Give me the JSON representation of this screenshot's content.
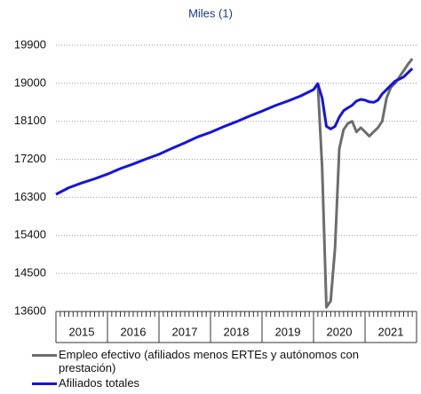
{
  "chart_data": {
    "type": "line",
    "title": "Miles (1)",
    "year_labels": [
      "2015",
      "2016",
      "2017",
      "2018",
      "2019",
      "2020",
      "2021"
    ],
    "x": [
      2015,
      2015.25,
      2015.5,
      2015.75,
      2016,
      2016.25,
      2016.5,
      2016.75,
      2017,
      2017.25,
      2017.5,
      2017.75,
      2018,
      2018.25,
      2018.5,
      2018.75,
      2019,
      2019.25,
      2019.5,
      2019.75,
      2020,
      2020.083,
      2020.167,
      2020.25,
      2020.333,
      2020.417,
      2020.5,
      2020.583,
      2020.667,
      2020.75,
      2020.833,
      2020.917,
      2021,
      2021.083,
      2021.167,
      2021.25,
      2021.333,
      2021.417,
      2021.5,
      2021.583,
      2021.667,
      2021.75,
      2021.833,
      2021.917
    ],
    "series": [
      {
        "name": "Empleo efectivo (afiliados menos ERTEs y autónomos con prestación)",
        "color": "#6d6d6d",
        "values": [
          null,
          null,
          null,
          null,
          null,
          null,
          null,
          null,
          null,
          null,
          null,
          null,
          null,
          null,
          null,
          null,
          null,
          null,
          null,
          null,
          18850,
          18990,
          17000,
          13700,
          13850,
          15100,
          17450,
          17900,
          18050,
          18100,
          17850,
          17950,
          17850,
          17750,
          17850,
          17950,
          18100,
          18650,
          18900,
          19000,
          19150,
          19300,
          19450,
          19580
        ]
      },
      {
        "name": "Afiliados totales",
        "color": "#1414e0",
        "values": [
          16372,
          16530,
          16640,
          16740,
          16850,
          16980,
          17090,
          17210,
          17320,
          17460,
          17590,
          17730,
          17840,
          17970,
          18090,
          18220,
          18340,
          18470,
          18580,
          18700,
          18850,
          18990,
          18650,
          17980,
          17920,
          17980,
          18200,
          18350,
          18420,
          18480,
          18580,
          18620,
          18600,
          18560,
          18550,
          18600,
          18750,
          18850,
          18950,
          19050,
          19100,
          19150,
          19250,
          19350
        ]
      }
    ],
    "xlim": [
      2015,
      2022
    ],
    "ylim": [
      13600,
      19900
    ],
    "yticks": [
      13600,
      14500,
      15400,
      16300,
      17200,
      18100,
      19000,
      19900
    ],
    "grid": true
  }
}
